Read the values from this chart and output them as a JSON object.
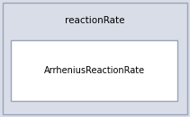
{
  "outer_label": "reactionRate",
  "inner_label": "ArrheniusReactionRate",
  "outer_bg_color": "#d8dde8",
  "inner_bg_color": "#ffffff",
  "outer_border_color": "#9aa4b8",
  "inner_border_color": "#9aa4b8",
  "fig_bg_color": "#d8dde8",
  "outer_label_fontsize": 7.5,
  "inner_label_fontsize": 7.0,
  "text_color": "#000000"
}
